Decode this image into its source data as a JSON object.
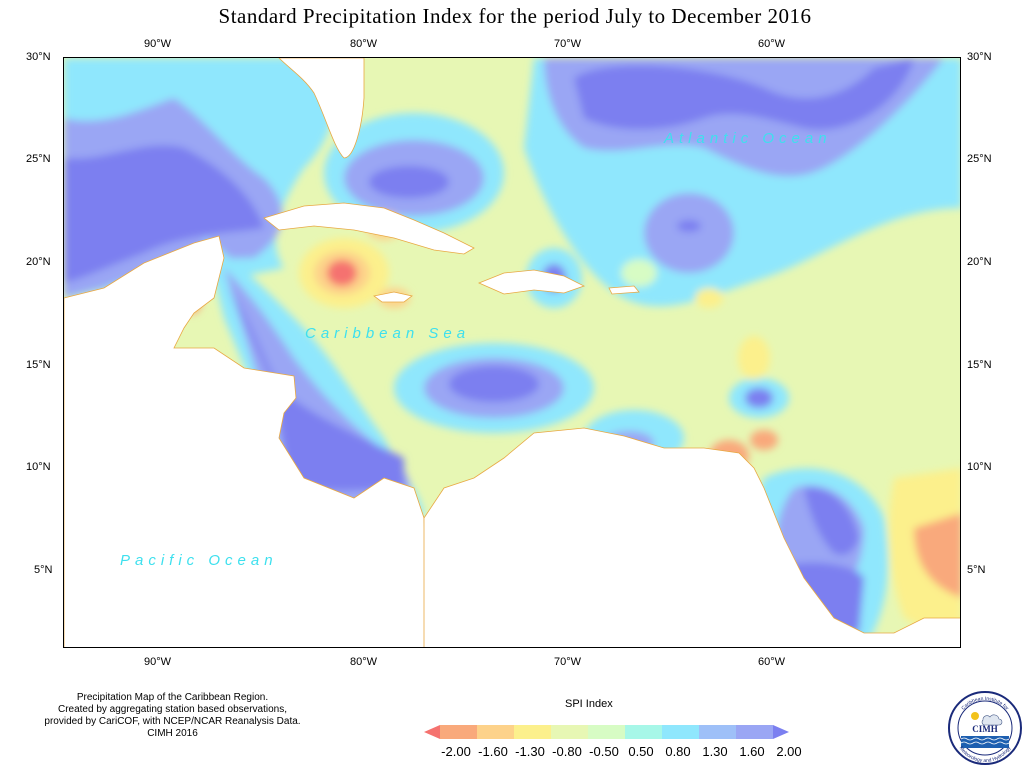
{
  "title": "Standard Precipitation Index for the period July to December 2016",
  "axes": {
    "lon_ticks": [
      "90°W",
      "80°W",
      "70°W",
      "60°W"
    ],
    "lat_ticks": [
      "30°N",
      "25°N",
      "20°N",
      "15°N",
      "10°N",
      "5°N"
    ]
  },
  "ocean_labels": {
    "atlantic": "Atlantic Ocean",
    "caribbean": "Caribbean Sea",
    "pacific": "Pacific Ocean"
  },
  "credits": [
    "Precipitation Map of the Caribbean Region.",
    "Created by aggregating station based observations,",
    "provided by CariCOF, with NCEP/NCAR Reanalysis Data.",
    "CIMH 2016"
  ],
  "legend": {
    "title": "SPI Index",
    "labels": [
      "-2.00",
      "-1.60",
      "-1.30",
      "-0.80",
      "-0.50",
      "0.50",
      "0.80",
      "1.30",
      "1.60",
      "2.00"
    ],
    "colors": [
      "#f5726f",
      "#f9a97b",
      "#fdd28a",
      "#fcf08c",
      "#e7f7b4",
      "#d7fcc4",
      "#a7f7e8",
      "#8fe7fd",
      "#9ec0f8",
      "#9aa6f4",
      "#7b7ff0"
    ]
  },
  "logo": {
    "name": "CIMH",
    "text_top": "Caribbean Institute for",
    "text_bottom": "Meteorology and Hydrology"
  }
}
